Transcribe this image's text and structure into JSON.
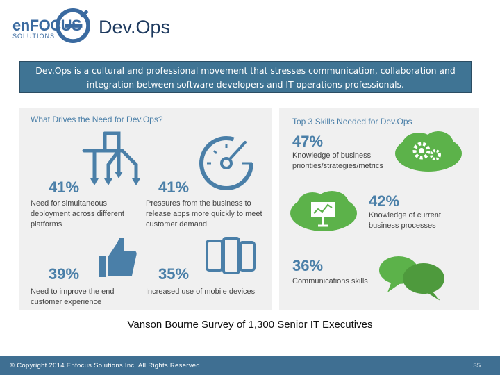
{
  "header": {
    "logo_text": "enFOCUS",
    "logo_sub": "SOLUTIONS",
    "title": "Dev.Ops"
  },
  "banner": {
    "text": "Dev.Ops is a cultural and professional movement that stresses communication, collaboration and integration between software developers and IT operations professionals."
  },
  "left_panel": {
    "heading": "What Drives the Need for Dev.Ops?",
    "items": [
      {
        "percent": "41%",
        "text": "Need for simultaneous deployment across different platforms",
        "icon": "branching-arrows-icon"
      },
      {
        "percent": "41%",
        "text": "Pressures from the business to release apps more quickly to meet customer demand",
        "icon": "speedometer-icon"
      },
      {
        "percent": "39%",
        "text": "Need to improve the end customer experience",
        "icon": "thumbs-up-icon"
      },
      {
        "percent": "35%",
        "text": "Increased use of mobile devices",
        "icon": "mobile-devices-icon"
      }
    ]
  },
  "right_panel": {
    "heading": "Top 3 Skills Needed for Dev.Ops",
    "items": [
      {
        "percent": "47%",
        "text": "Knowledge of business priorities/strategies/metrics",
        "icon": "gears-cloud-icon"
      },
      {
        "percent": "42%",
        "text": "Knowledge of current business processes",
        "icon": "presentation-cloud-icon"
      },
      {
        "percent": "36%",
        "text": "Communications skills",
        "icon": "speech-bubbles-icon"
      }
    ],
    "colors": {
      "green": "#5cb24a",
      "blue": "#4a7fa8"
    }
  },
  "caption": "Vanson Bourne Survey of 1,300 Senior IT Executives",
  "footer": {
    "copyright": "© Copyright 2014 Enfocus Solutions Inc. All Rights Reserved.",
    "page_number": "35"
  }
}
